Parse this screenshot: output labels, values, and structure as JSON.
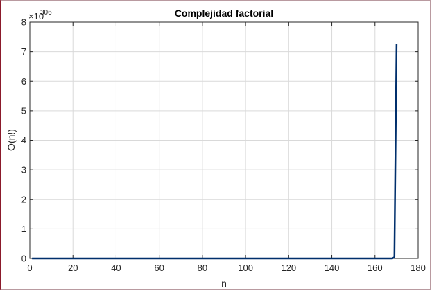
{
  "chart_data": {
    "type": "line",
    "title": "Complejidad factorial",
    "xlabel": "n",
    "ylabel": "O(n!)",
    "y_exponent_label": "×10",
    "y_exponent_power": "306",
    "xlim": [
      0,
      180
    ],
    "ylim": [
      0,
      8
    ],
    "x_ticks": [
      0,
      20,
      40,
      60,
      80,
      100,
      120,
      140,
      160,
      180
    ],
    "y_ticks": [
      0,
      1,
      2,
      3,
      4,
      5,
      6,
      7,
      8
    ],
    "grid": true,
    "series": [
      {
        "color": "#002f6c",
        "x": [
          1,
          20,
          40,
          60,
          80,
          100,
          120,
          140,
          160,
          168,
          169,
          170
        ],
        "y": [
          0,
          0,
          0,
          0,
          0,
          0,
          0,
          0,
          0,
          0,
          0.0427,
          7.257
        ]
      }
    ]
  }
}
